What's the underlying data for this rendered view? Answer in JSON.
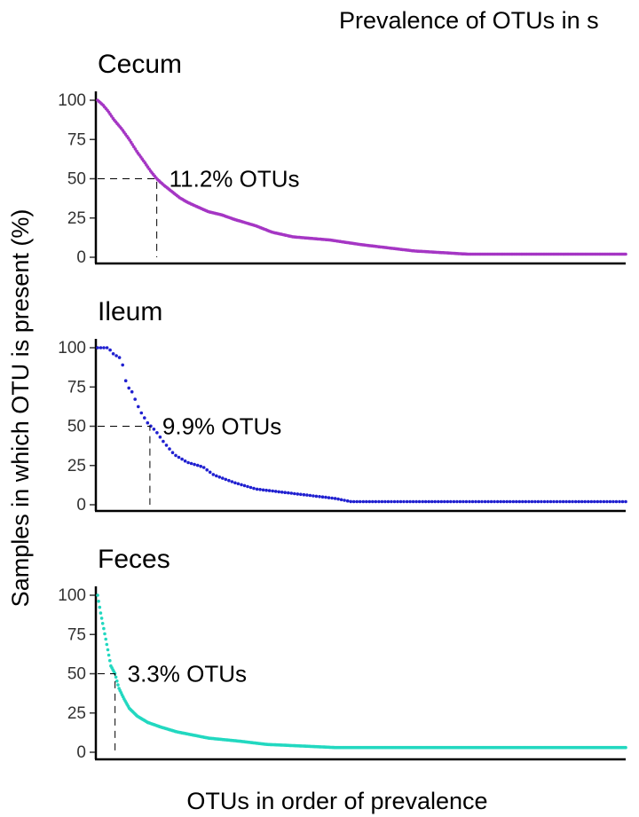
{
  "chart_data": {
    "type": "scatter",
    "title": "Prevalence of OTUs in s",
    "xlabel": "OTUs in order of prevalence",
    "ylabel": "Samples in which OTU is present (%)",
    "ylim": [
      0,
      100
    ],
    "yticks": [
      "0",
      "25",
      "50",
      "75",
      "100"
    ],
    "x_tick_labels": "none",
    "grid": false,
    "legend": "none",
    "panels": [
      {
        "name": "Cecum",
        "color": "#A536C4",
        "threshold_y": 50,
        "threshold_x_fraction": 0.112,
        "annotation": "11.2% OTUs",
        "curve": [
          [
            0.0,
            100
          ],
          [
            0.01,
            97
          ],
          [
            0.02,
            93
          ],
          [
            0.03,
            88
          ],
          [
            0.045,
            82
          ],
          [
            0.06,
            75
          ],
          [
            0.075,
            67
          ],
          [
            0.09,
            60
          ],
          [
            0.1,
            55
          ],
          [
            0.112,
            50
          ],
          [
            0.125,
            46
          ],
          [
            0.14,
            42
          ],
          [
            0.155,
            38
          ],
          [
            0.17,
            35
          ],
          [
            0.19,
            32
          ],
          [
            0.21,
            29
          ],
          [
            0.235,
            27
          ],
          [
            0.26,
            24
          ],
          [
            0.3,
            20
          ],
          [
            0.33,
            16
          ],
          [
            0.37,
            13
          ],
          [
            0.44,
            11
          ],
          [
            0.5,
            8
          ],
          [
            0.55,
            6
          ],
          [
            0.6,
            4
          ],
          [
            0.7,
            2
          ],
          [
            1.0,
            2
          ]
        ],
        "point_count": 380
      },
      {
        "name": "Ileum",
        "color": "#2020D0",
        "threshold_y": 50,
        "threshold_x_fraction": 0.099,
        "annotation": "9.9% OTUs",
        "curve": [
          [
            0.0,
            100
          ],
          [
            0.02,
            100
          ],
          [
            0.03,
            96
          ],
          [
            0.045,
            93
          ],
          [
            0.055,
            76
          ],
          [
            0.065,
            72
          ],
          [
            0.08,
            60
          ],
          [
            0.095,
            52
          ],
          [
            0.11,
            47
          ],
          [
            0.125,
            40
          ],
          [
            0.145,
            32
          ],
          [
            0.17,
            27
          ],
          [
            0.2,
            24
          ],
          [
            0.22,
            19
          ],
          [
            0.26,
            14
          ],
          [
            0.3,
            10
          ],
          [
            0.35,
            8
          ],
          [
            0.4,
            6
          ],
          [
            0.45,
            4
          ],
          [
            0.48,
            2
          ],
          [
            1.0,
            2
          ]
        ],
        "point_count": 170
      },
      {
        "name": "Feces",
        "color": "#22D8C0",
        "threshold_y": 50,
        "threshold_x_fraction": 0.033,
        "annotation": "3.3% OTUs",
        "curve": [
          [
            0.0,
            100
          ],
          [
            0.005,
            90
          ],
          [
            0.012,
            78
          ],
          [
            0.02,
            64
          ],
          [
            0.025,
            55
          ],
          [
            0.033,
            50
          ],
          [
            0.04,
            41
          ],
          [
            0.05,
            34
          ],
          [
            0.06,
            28
          ],
          [
            0.075,
            23
          ],
          [
            0.095,
            19
          ],
          [
            0.12,
            16
          ],
          [
            0.15,
            13
          ],
          [
            0.18,
            11
          ],
          [
            0.21,
            9
          ],
          [
            0.27,
            7
          ],
          [
            0.32,
            5
          ],
          [
            0.45,
            3
          ],
          [
            1.0,
            3
          ]
        ],
        "point_count": 520
      }
    ]
  }
}
